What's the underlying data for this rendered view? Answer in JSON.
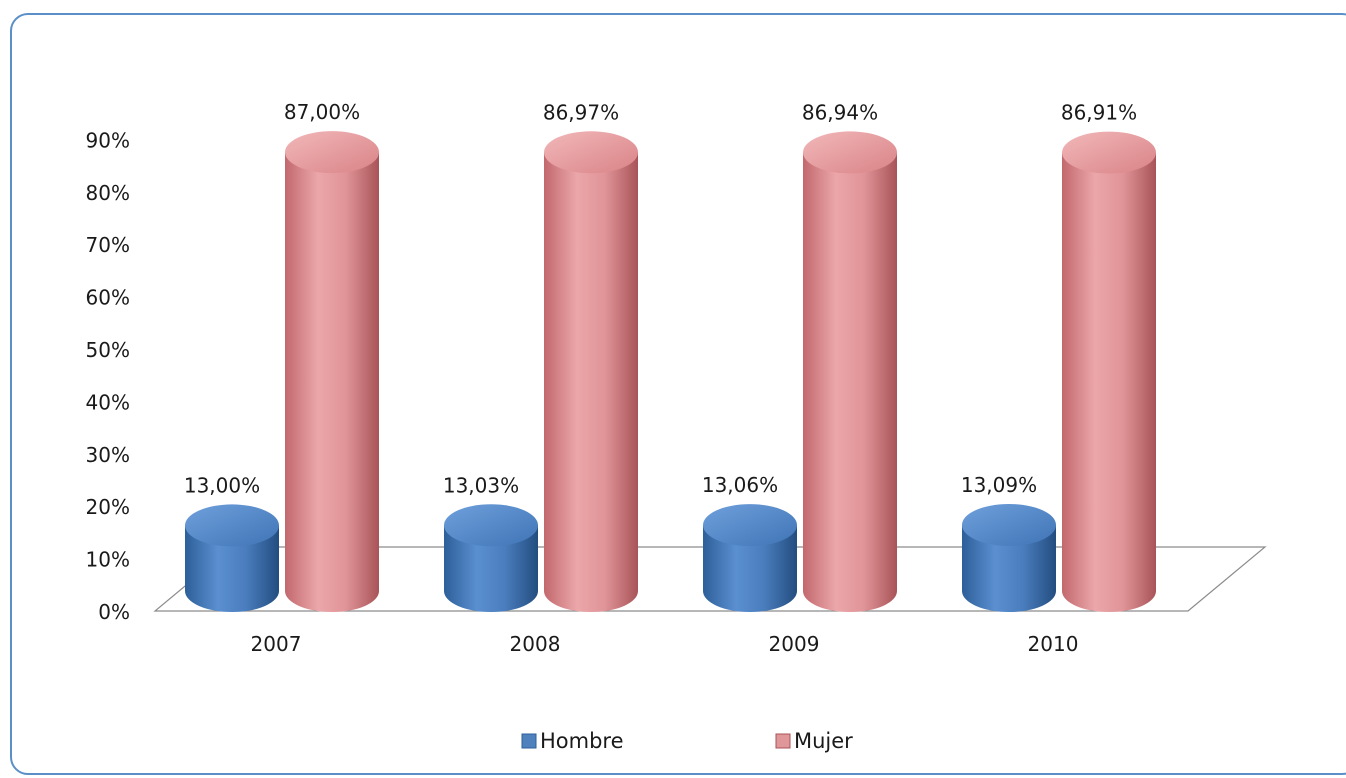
{
  "chart_data": {
    "type": "bar",
    "style": "3d-cylinder",
    "categories": [
      "2007",
      "2008",
      "2009",
      "2010"
    ],
    "series": [
      {
        "name": "Hombre",
        "values": [
          13.0,
          13.03,
          13.06,
          13.09
        ],
        "labels": [
          "13,00%",
          "13,03%",
          "13,06%",
          "13,09%"
        ],
        "color": "#4f81bd"
      },
      {
        "name": "Mujer",
        "values": [
          87.0,
          86.97,
          86.94,
          86.91
        ],
        "labels": [
          "87,00%",
          "86,97%",
          "86,94%",
          "86,91%"
        ],
        "color": "#e0979a"
      }
    ],
    "y_ticks": [
      "0%",
      "10%",
      "20%",
      "30%",
      "40%",
      "50%",
      "60%",
      "70%",
      "80%",
      "90%"
    ],
    "ylim": [
      0,
      90
    ],
    "grid": false,
    "legend_position": "bottom"
  }
}
